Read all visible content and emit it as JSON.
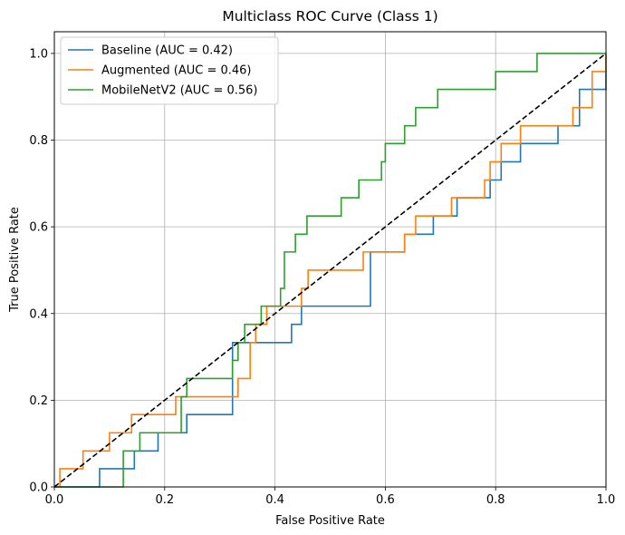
{
  "chart_data": {
    "type": "line",
    "title": "Multiclass ROC Curve (Class 1)",
    "xlabel": "False Positive Rate",
    "ylabel": "True Positive Rate",
    "xlim": [
      0.0,
      1.0
    ],
    "ylim": [
      0.0,
      1.05
    ],
    "xticks": [
      "0.0",
      "0.2",
      "0.4",
      "0.6",
      "0.8",
      "1.0"
    ],
    "yticks": [
      "0.0",
      "0.2",
      "0.4",
      "0.6",
      "0.8",
      "1.0"
    ],
    "grid": true,
    "legend_position": "top-left",
    "series": [
      {
        "name": "Baseline (AUC = 0.42)",
        "color": "#1f77b4",
        "points": [
          [
            0,
            0
          ],
          [
            0.082,
            0
          ],
          [
            0.082,
            0.042
          ],
          [
            0.145,
            0.042
          ],
          [
            0.145,
            0.083
          ],
          [
            0.188,
            0.083
          ],
          [
            0.188,
            0.125
          ],
          [
            0.24,
            0.125
          ],
          [
            0.24,
            0.167
          ],
          [
            0.323,
            0.167
          ],
          [
            0.323,
            0.333
          ],
          [
            0.43,
            0.333
          ],
          [
            0.43,
            0.375
          ],
          [
            0.448,
            0.375
          ],
          [
            0.448,
            0.417
          ],
          [
            0.573,
            0.417
          ],
          [
            0.573,
            0.542
          ],
          [
            0.635,
            0.542
          ],
          [
            0.635,
            0.583
          ],
          [
            0.687,
            0.583
          ],
          [
            0.687,
            0.625
          ],
          [
            0.73,
            0.625
          ],
          [
            0.73,
            0.667
          ],
          [
            0.79,
            0.667
          ],
          [
            0.79,
            0.708
          ],
          [
            0.81,
            0.708
          ],
          [
            0.81,
            0.75
          ],
          [
            0.845,
            0.75
          ],
          [
            0.845,
            0.792
          ],
          [
            0.913,
            0.792
          ],
          [
            0.913,
            0.833
          ],
          [
            0.952,
            0.833
          ],
          [
            0.952,
            0.917
          ],
          [
            1.0,
            0.917
          ],
          [
            1.0,
            1.0
          ]
        ]
      },
      {
        "name": "Augmented (AUC = 0.46)",
        "color": "#ff7f0e",
        "points": [
          [
            0,
            0
          ],
          [
            0.01,
            0
          ],
          [
            0.01,
            0.042
          ],
          [
            0.052,
            0.042
          ],
          [
            0.052,
            0.083
          ],
          [
            0.1,
            0.083
          ],
          [
            0.1,
            0.125
          ],
          [
            0.14,
            0.125
          ],
          [
            0.14,
            0.167
          ],
          [
            0.22,
            0.167
          ],
          [
            0.22,
            0.208
          ],
          [
            0.333,
            0.208
          ],
          [
            0.333,
            0.25
          ],
          [
            0.355,
            0.25
          ],
          [
            0.355,
            0.333
          ],
          [
            0.365,
            0.333
          ],
          [
            0.365,
            0.375
          ],
          [
            0.385,
            0.375
          ],
          [
            0.385,
            0.417
          ],
          [
            0.448,
            0.417
          ],
          [
            0.448,
            0.458
          ],
          [
            0.46,
            0.458
          ],
          [
            0.46,
            0.5
          ],
          [
            0.56,
            0.5
          ],
          [
            0.56,
            0.542
          ],
          [
            0.635,
            0.542
          ],
          [
            0.635,
            0.583
          ],
          [
            0.655,
            0.583
          ],
          [
            0.655,
            0.625
          ],
          [
            0.72,
            0.625
          ],
          [
            0.72,
            0.667
          ],
          [
            0.78,
            0.667
          ],
          [
            0.78,
            0.708
          ],
          [
            0.79,
            0.708
          ],
          [
            0.79,
            0.75
          ],
          [
            0.81,
            0.75
          ],
          [
            0.81,
            0.792
          ],
          [
            0.845,
            0.792
          ],
          [
            0.845,
            0.833
          ],
          [
            0.94,
            0.833
          ],
          [
            0.94,
            0.875
          ],
          [
            0.975,
            0.875
          ],
          [
            0.975,
            0.958
          ],
          [
            1.0,
            0.958
          ],
          [
            1.0,
            1.0
          ]
        ]
      },
      {
        "name": "MobileNetV2 (AUC = 0.56)",
        "color": "#2ca02c",
        "points": [
          [
            0,
            0
          ],
          [
            0.125,
            0
          ],
          [
            0.125,
            0.083
          ],
          [
            0.155,
            0.083
          ],
          [
            0.155,
            0.125
          ],
          [
            0.23,
            0.125
          ],
          [
            0.23,
            0.208
          ],
          [
            0.24,
            0.208
          ],
          [
            0.24,
            0.25
          ],
          [
            0.323,
            0.25
          ],
          [
            0.323,
            0.292
          ],
          [
            0.333,
            0.292
          ],
          [
            0.333,
            0.333
          ],
          [
            0.345,
            0.333
          ],
          [
            0.345,
            0.375
          ],
          [
            0.375,
            0.375
          ],
          [
            0.375,
            0.417
          ],
          [
            0.41,
            0.417
          ],
          [
            0.41,
            0.458
          ],
          [
            0.417,
            0.458
          ],
          [
            0.417,
            0.542
          ],
          [
            0.437,
            0.542
          ],
          [
            0.437,
            0.583
          ],
          [
            0.458,
            0.583
          ],
          [
            0.458,
            0.625
          ],
          [
            0.52,
            0.625
          ],
          [
            0.52,
            0.667
          ],
          [
            0.552,
            0.667
          ],
          [
            0.552,
            0.708
          ],
          [
            0.593,
            0.708
          ],
          [
            0.593,
            0.75
          ],
          [
            0.6,
            0.75
          ],
          [
            0.6,
            0.792
          ],
          [
            0.635,
            0.792
          ],
          [
            0.635,
            0.833
          ],
          [
            0.655,
            0.833
          ],
          [
            0.655,
            0.875
          ],
          [
            0.695,
            0.875
          ],
          [
            0.695,
            0.917
          ],
          [
            0.8,
            0.917
          ],
          [
            0.8,
            0.958
          ],
          [
            0.875,
            0.958
          ],
          [
            0.875,
            1.0
          ],
          [
            1.0,
            1.0
          ]
        ]
      }
    ],
    "reference_line": {
      "points": [
        [
          0,
          0
        ],
        [
          1,
          1
        ]
      ],
      "color": "#000000",
      "style": "dashed"
    }
  }
}
